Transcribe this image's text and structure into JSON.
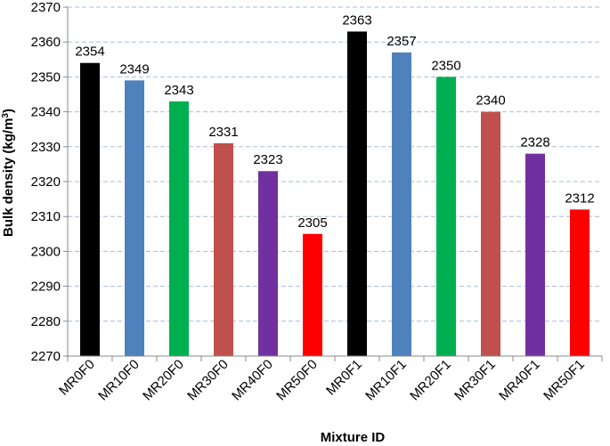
{
  "chart_data": {
    "type": "bar",
    "title": "",
    "xlabel": "Mixture ID",
    "ylabel": "Bulk density (kg/m",
    "ylabel_superscript": "3",
    "ylabel_close": ")",
    "categories": [
      "MR0F0",
      "MR10F0",
      "MR20F0",
      "MR30F0",
      "MR40F0",
      "MR50F0",
      "MR0F1",
      "MR10F1",
      "MR20F1",
      "MR30F1",
      "MR40F1",
      "MR50F1"
    ],
    "values": [
      2354,
      2349,
      2343,
      2331,
      2323,
      2305,
      2363,
      2357,
      2350,
      2340,
      2328,
      2312
    ],
    "data_labels": [
      "2354",
      "2349",
      "2343",
      "2331",
      "2323",
      "2305",
      "2363",
      "2357",
      "2350",
      "2340",
      "2328",
      "2312"
    ],
    "bar_colors": [
      "#000000",
      "#4f81bd",
      "#00b050",
      "#c0504d",
      "#7030a0",
      "#ff0000",
      "#000000",
      "#4f81bd",
      "#00b050",
      "#c0504d",
      "#7030a0",
      "#ff0000"
    ],
    "ylim": [
      2270,
      2370
    ],
    "yticks": [
      "2270",
      "2280",
      "2290",
      "2300",
      "2310",
      "2320",
      "2330",
      "2340",
      "2350",
      "2360",
      "2370"
    ],
    "grid": true,
    "gridline_color": "#a9bcd6",
    "legend": "none"
  }
}
